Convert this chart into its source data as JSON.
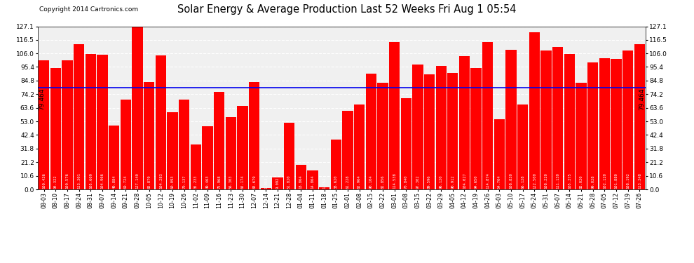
{
  "title": "Solar Energy & Average Production Last 52 Weeks Fri Aug 1 05:54",
  "copyright": "Copyright 2014 Cartronics.com",
  "average_line": 79.464,
  "bar_color": "#ff0000",
  "average_line_color": "#0000ee",
  "background_color": "#ffffff",
  "plot_bg_color": "#f0f0f0",
  "grid_color": "#cccccc",
  "ylim": [
    0.0,
    127.1
  ],
  "yticks": [
    0.0,
    10.6,
    21.2,
    31.8,
    42.4,
    53.0,
    63.6,
    74.2,
    84.8,
    95.4,
    106.0,
    116.5,
    127.1
  ],
  "legend_avg_color": "#000099",
  "legend_weekly_color": "#ff0000",
  "categories": [
    "08-03",
    "08-10",
    "08-17",
    "08-24",
    "08-31",
    "09-07",
    "09-14",
    "09-21",
    "09-28",
    "10-05",
    "10-12",
    "10-19",
    "10-26",
    "11-02",
    "11-09",
    "11-16",
    "11-23",
    "11-30",
    "12-07",
    "12-14",
    "12-21",
    "12-28",
    "01-04",
    "01-11",
    "01-18",
    "01-25",
    "02-01",
    "02-08",
    "02-15",
    "02-22",
    "03-01",
    "03-08",
    "03-15",
    "03-22",
    "03-29",
    "04-05",
    "04-12",
    "04-19",
    "04-26",
    "05-03",
    "05-10",
    "05-17",
    "05-24",
    "05-31",
    "06-07",
    "06-14",
    "06-21",
    "06-28",
    "07-05",
    "07-12",
    "07-19",
    "07-26"
  ],
  "values": [
    100.436,
    94.322,
    100.576,
    113.301,
    105.609,
    104.966,
    49.884,
    69.724,
    127.14,
    83.879,
    104.283,
    60.093,
    70.137,
    35.233,
    49.463,
    75.968,
    56.303,
    65.174,
    83.679,
    1.053,
    9.092,
    51.82,
    18.864,
    14.864,
    1.752,
    38.62,
    61.228,
    65.964,
    90.104,
    82.856,
    114.538,
    70.84,
    97.302,
    89.596,
    96.12,
    90.912,
    104.027,
    94.65,
    114.874,
    54.704,
    108.83,
    66.128,
    122.5,
    108.22,
    111.13,
    105.375,
    83.02,
    99.028,
    102.12,
    101.88,
    108.192,
    113.348
  ],
  "avg_label": "79.464"
}
